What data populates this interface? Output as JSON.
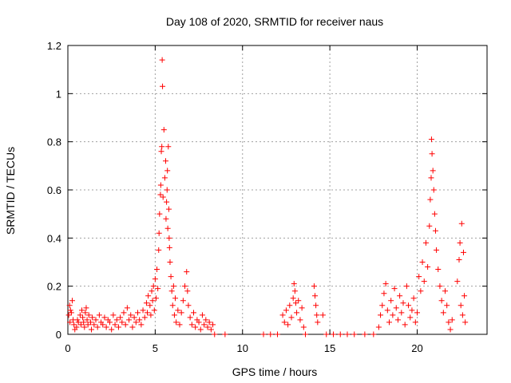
{
  "chart_data": {
    "type": "scatter",
    "title": "Day 108 of 2020, SRMTID for receiver naus",
    "xlabel": "GPS time / hours",
    "ylabel": "SRMTID / TECUs",
    "xlim": [
      0,
      24
    ],
    "ylim": [
      0,
      1.2
    ],
    "x_ticks": [
      0,
      5,
      10,
      15,
      20
    ],
    "x_tick_labels": [
      "0",
      "5",
      "10",
      "15",
      "20"
    ],
    "y_ticks": [
      0,
      0.2,
      0.4,
      0.6,
      0.8,
      1,
      1.2
    ],
    "y_tick_labels": [
      "0",
      "0.2",
      "0.4",
      "0.6",
      "0.8",
      "1",
      "1.2"
    ],
    "grid": true,
    "marker": "+",
    "color": "#ff0000",
    "series": [
      {
        "name": "SRMTID",
        "points": [
          [
            0.05,
            0.08
          ],
          [
            0.1,
            0.12
          ],
          [
            0.12,
            0.05
          ],
          [
            0.15,
            0.1
          ],
          [
            0.2,
            0.09
          ],
          [
            0.25,
            0.14
          ],
          [
            0.3,
            0.06
          ],
          [
            0.35,
            0.04
          ],
          [
            0.4,
            0.02
          ],
          [
            0.5,
            0.03
          ],
          [
            0.55,
            0.06
          ],
          [
            0.6,
            0.05
          ],
          [
            0.7,
            0.08
          ],
          [
            0.75,
            0.04
          ],
          [
            0.8,
            0.1
          ],
          [
            0.85,
            0.07
          ],
          [
            0.9,
            0.05
          ],
          [
            0.95,
            0.03
          ],
          [
            1.0,
            0.09
          ],
          [
            1.05,
            0.11
          ],
          [
            1.1,
            0.06
          ],
          [
            1.15,
            0.04
          ],
          [
            1.2,
            0.08
          ],
          [
            1.3,
            0.05
          ],
          [
            1.35,
            0.02
          ],
          [
            1.4,
            0.07
          ],
          [
            1.5,
            0.04
          ],
          [
            1.6,
            0.06
          ],
          [
            1.7,
            0.03
          ],
          [
            1.8,
            0.08
          ],
          [
            1.9,
            0.05
          ],
          [
            2.0,
            0.04
          ],
          [
            2.1,
            0.07
          ],
          [
            2.2,
            0.03
          ],
          [
            2.3,
            0.06
          ],
          [
            2.4,
            0.05
          ],
          [
            2.5,
            0.02
          ],
          [
            2.6,
            0.08
          ],
          [
            2.7,
            0.04
          ],
          [
            2.8,
            0.06
          ],
          [
            2.9,
            0.03
          ],
          [
            3.0,
            0.07
          ],
          [
            3.1,
            0.05
          ],
          [
            3.2,
            0.09
          ],
          [
            3.3,
            0.04
          ],
          [
            3.4,
            0.11
          ],
          [
            3.5,
            0.06
          ],
          [
            3.6,
            0.08
          ],
          [
            3.7,
            0.03
          ],
          [
            3.8,
            0.07
          ],
          [
            3.9,
            0.05
          ],
          [
            4.0,
            0.09
          ],
          [
            4.1,
            0.06
          ],
          [
            4.2,
            0.04
          ],
          [
            4.3,
            0.1
          ],
          [
            4.4,
            0.07
          ],
          [
            4.5,
            0.13
          ],
          [
            4.55,
            0.09
          ],
          [
            4.6,
            0.16
          ],
          [
            4.7,
            0.12
          ],
          [
            4.75,
            0.08
          ],
          [
            4.8,
            0.18
          ],
          [
            4.85,
            0.14
          ],
          [
            4.9,
            0.2
          ],
          [
            4.95,
            0.1
          ],
          [
            5.0,
            0.23
          ],
          [
            5.05,
            0.15
          ],
          [
            5.1,
            0.27
          ],
          [
            5.15,
            0.19
          ],
          [
            5.2,
            0.35
          ],
          [
            5.22,
            0.42
          ],
          [
            5.25,
            0.5
          ],
          [
            5.3,
            0.58
          ],
          [
            5.32,
            0.62
          ],
          [
            5.35,
            0.76
          ],
          [
            5.38,
            0.78
          ],
          [
            5.4,
            1.14
          ],
          [
            5.42,
            1.03
          ],
          [
            5.45,
            0.57
          ],
          [
            5.5,
            0.85
          ],
          [
            5.55,
            0.65
          ],
          [
            5.6,
            0.72
          ],
          [
            5.62,
            0.48
          ],
          [
            5.65,
            0.55
          ],
          [
            5.68,
            0.6
          ],
          [
            5.7,
            0.68
          ],
          [
            5.72,
            0.44
          ],
          [
            5.75,
            0.78
          ],
          [
            5.78,
            0.52
          ],
          [
            5.8,
            0.4
          ],
          [
            5.82,
            0.36
          ],
          [
            5.85,
            0.3
          ],
          [
            5.9,
            0.24
          ],
          [
            5.95,
            0.18
          ],
          [
            6.0,
            0.12
          ],
          [
            6.05,
            0.2
          ],
          [
            6.1,
            0.08
          ],
          [
            6.15,
            0.15
          ],
          [
            6.2,
            0.05
          ],
          [
            6.3,
            0.1
          ],
          [
            6.4,
            0.04
          ],
          [
            6.5,
            0.09
          ],
          [
            6.6,
            0.14
          ],
          [
            6.7,
            0.2
          ],
          [
            6.8,
            0.26
          ],
          [
            6.85,
            0.18
          ],
          [
            6.9,
            0.12
          ],
          [
            7.0,
            0.07
          ],
          [
            7.1,
            0.04
          ],
          [
            7.2,
            0.09
          ],
          [
            7.3,
            0.03
          ],
          [
            7.4,
            0.06
          ],
          [
            7.5,
            0.05
          ],
          [
            7.6,
            0.02
          ],
          [
            7.7,
            0.08
          ],
          [
            7.8,
            0.04
          ],
          [
            7.9,
            0.06
          ],
          [
            8.0,
            0.03
          ],
          [
            8.1,
            0.05
          ],
          [
            8.2,
            0.02
          ],
          [
            8.3,
            0.04
          ],
          [
            8.4,
            0.0
          ],
          [
            9.0,
            0.0
          ],
          [
            11.2,
            0.0
          ],
          [
            11.6,
            0.0
          ],
          [
            12.0,
            0.0
          ],
          [
            12.3,
            0.08
          ],
          [
            12.4,
            0.05
          ],
          [
            12.5,
            0.1
          ],
          [
            12.6,
            0.04
          ],
          [
            12.7,
            0.12
          ],
          [
            12.8,
            0.07
          ],
          [
            12.9,
            0.15
          ],
          [
            12.95,
            0.21
          ],
          [
            13.0,
            0.18
          ],
          [
            13.05,
            0.13
          ],
          [
            13.1,
            0.09
          ],
          [
            13.2,
            0.14
          ],
          [
            13.3,
            0.06
          ],
          [
            13.4,
            0.11
          ],
          [
            13.5,
            0.03
          ],
          [
            13.6,
            0.0
          ],
          [
            14.1,
            0.2
          ],
          [
            14.15,
            0.16
          ],
          [
            14.2,
            0.12
          ],
          [
            14.25,
            0.08
          ],
          [
            14.3,
            0.05
          ],
          [
            14.6,
            0.08
          ],
          [
            14.8,
            0.0
          ],
          [
            15.2,
            0.0
          ],
          [
            15.6,
            0.0
          ],
          [
            16.0,
            0.0
          ],
          [
            16.4,
            0.0
          ],
          [
            17.0,
            0.0
          ],
          [
            17.5,
            0.0
          ],
          [
            17.8,
            0.03
          ],
          [
            17.9,
            0.08
          ],
          [
            18.0,
            0.12
          ],
          [
            18.1,
            0.17
          ],
          [
            18.2,
            0.21
          ],
          [
            18.3,
            0.1
          ],
          [
            18.4,
            0.05
          ],
          [
            18.5,
            0.14
          ],
          [
            18.6,
            0.08
          ],
          [
            18.7,
            0.19
          ],
          [
            18.8,
            0.11
          ],
          [
            18.9,
            0.06
          ],
          [
            19.0,
            0.16
          ],
          [
            19.1,
            0.09
          ],
          [
            19.2,
            0.13
          ],
          [
            19.3,
            0.04
          ],
          [
            19.4,
            0.2
          ],
          [
            19.5,
            0.12
          ],
          [
            19.6,
            0.07
          ],
          [
            19.7,
            0.1
          ],
          [
            19.8,
            0.15
          ],
          [
            19.9,
            0.05
          ],
          [
            20.0,
            0.09
          ],
          [
            20.1,
            0.24
          ],
          [
            20.2,
            0.18
          ],
          [
            20.3,
            0.3
          ],
          [
            20.4,
            0.22
          ],
          [
            20.5,
            0.38
          ],
          [
            20.6,
            0.28
          ],
          [
            20.7,
            0.45
          ],
          [
            20.75,
            0.56
          ],
          [
            20.8,
            0.65
          ],
          [
            20.82,
            0.81
          ],
          [
            20.85,
            0.75
          ],
          [
            20.9,
            0.68
          ],
          [
            20.95,
            0.6
          ],
          [
            21.0,
            0.5
          ],
          [
            21.05,
            0.43
          ],
          [
            21.1,
            0.35
          ],
          [
            21.2,
            0.27
          ],
          [
            21.3,
            0.2
          ],
          [
            21.4,
            0.14
          ],
          [
            21.5,
            0.09
          ],
          [
            21.6,
            0.18
          ],
          [
            21.7,
            0.12
          ],
          [
            21.8,
            0.05
          ],
          [
            21.9,
            0.02
          ],
          [
            22.0,
            0.06
          ],
          [
            22.3,
            0.22
          ],
          [
            22.4,
            0.31
          ],
          [
            22.45,
            0.38
          ],
          [
            22.5,
            0.12
          ],
          [
            22.55,
            0.46
          ],
          [
            22.6,
            0.08
          ],
          [
            22.65,
            0.34
          ],
          [
            22.7,
            0.16
          ],
          [
            22.75,
            0.05
          ]
        ]
      }
    ]
  }
}
